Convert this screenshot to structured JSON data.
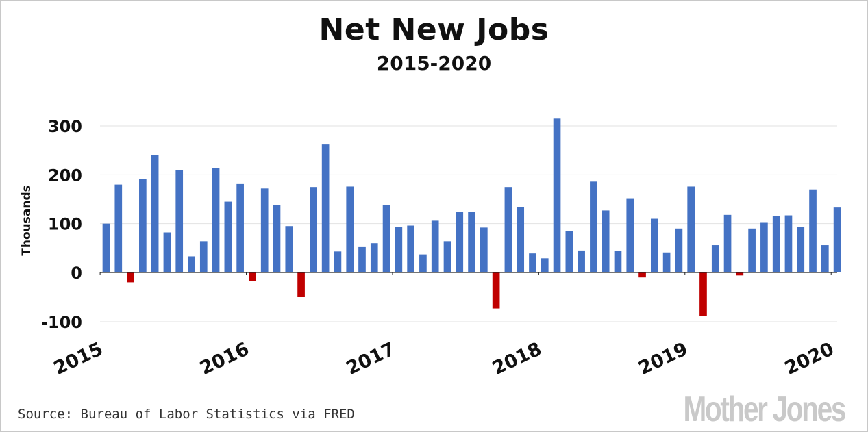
{
  "chart_data": {
    "type": "bar",
    "title": "Net New Jobs",
    "subtitle": "2015-2020",
    "ylabel": "Thousands",
    "ylim": [
      -100,
      300
    ],
    "yticks": [
      -100,
      0,
      100,
      200,
      300
    ],
    "grid": true,
    "x_start": "2015-01",
    "xtick_labels": [
      "2015",
      "2016",
      "2017",
      "2018",
      "2019",
      "2020"
    ],
    "positive_color": "#4472c4",
    "negative_color": "#c00000",
    "values": [
      100,
      180,
      -20,
      192,
      240,
      82,
      210,
      33,
      64,
      214,
      145,
      181,
      -17,
      172,
      138,
      95,
      -50,
      175,
      262,
      43,
      176,
      52,
      60,
      138,
      93,
      96,
      37,
      106,
      64,
      124,
      124,
      92,
      -73,
      175,
      134,
      39,
      29,
      315,
      85,
      45,
      186,
      127,
      44,
      152,
      -10,
      110,
      41,
      90,
      176,
      -88,
      56,
      118,
      -6,
      90,
      103,
      115,
      117,
      93,
      170,
      56,
      133
    ]
  },
  "footer": {
    "source": "Source: Bureau of Labor Statistics via FRED",
    "logo": "Mother Jones"
  }
}
